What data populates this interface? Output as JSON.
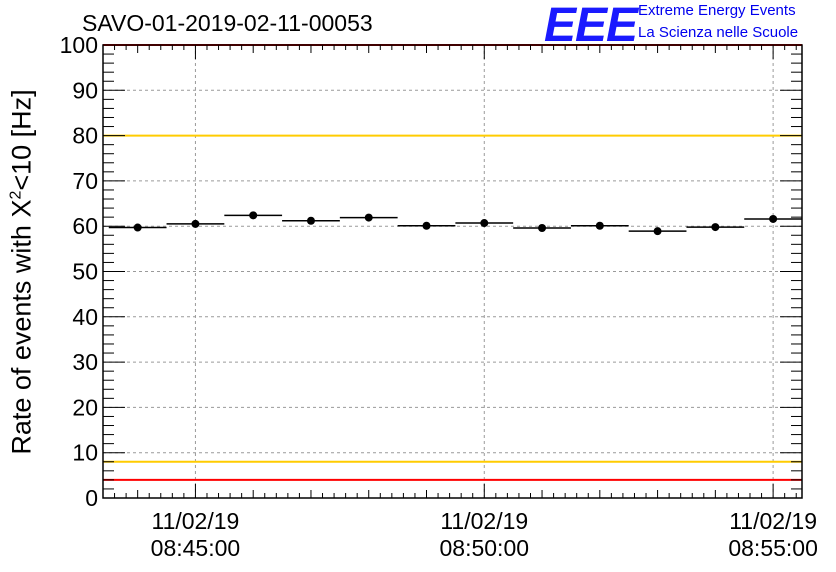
{
  "chart_data": {
    "type": "scatter",
    "title": "SAVO-01-2019-02-11-00053",
    "ylabel_prefix": "Rate of events with X",
    "ylabel_sup": "2",
    "ylabel_suffix": "<10 [Hz]",
    "xlabel": "",
    "ylim": [
      0,
      100
    ],
    "y_ticks": [
      "0",
      "10",
      "20",
      "30",
      "40",
      "50",
      "60",
      "70",
      "80",
      "90",
      "100"
    ],
    "x_tick_labels": [
      {
        "date": "11/02/19",
        "time": "08:45:00",
        "minutes": 0
      },
      {
        "date": "11/02/19",
        "time": "08:50:00",
        "minutes": 5
      },
      {
        "date": "11/02/19",
        "time": "08:55:00",
        "minutes": 10
      }
    ],
    "xlim_minutes": [
      -1.6,
      10.5
    ],
    "grid": true,
    "reference_lines": [
      {
        "y": 100,
        "color": "#ff0000"
      },
      {
        "y": 80,
        "color": "#ffcc00"
      },
      {
        "y": 8,
        "color": "#ffcc00"
      },
      {
        "y": 4,
        "color": "#ff0000"
      }
    ],
    "series": [
      {
        "name": "rate",
        "bin_width_minutes": 1,
        "bin_centers_minutes": [
          -1.0,
          0.0,
          1.0,
          2.0,
          3.0,
          4.0,
          5.0,
          6.0,
          7.0,
          8.0,
          9.0,
          10.0
        ],
        "values": [
          59.7,
          60.5,
          62.4,
          61.2,
          61.9,
          60.1,
          60.7,
          59.6,
          60.1,
          58.9,
          59.8,
          61.6
        ]
      }
    ]
  },
  "logo": {
    "text": "EEE",
    "line1": "Extreme Energy Events",
    "line2": "La Scienza nelle Scuole"
  }
}
